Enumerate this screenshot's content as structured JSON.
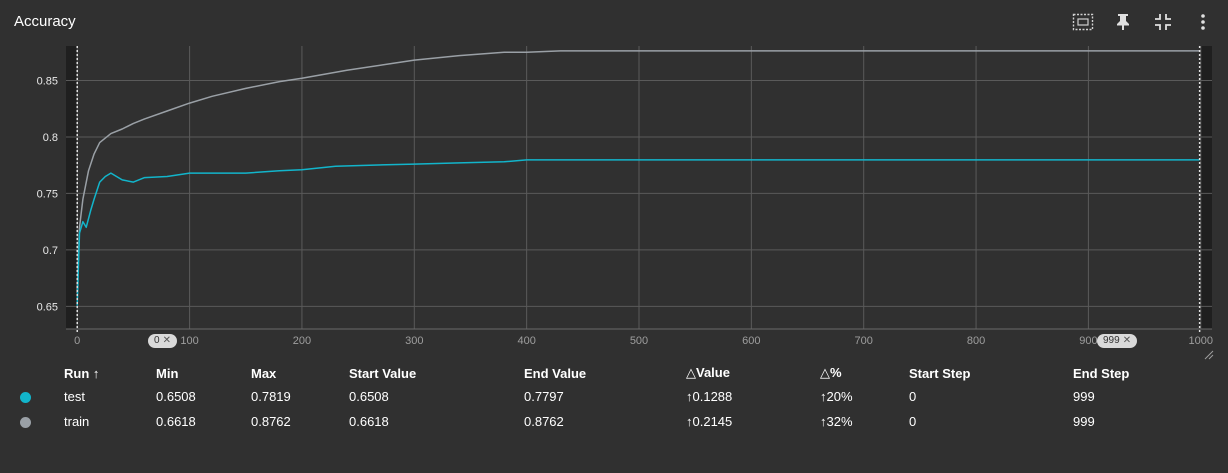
{
  "card": {
    "title": "Accuracy",
    "toolbar": [
      {
        "name": "fit-to-domain-icon",
        "icon": "fit-domain"
      },
      {
        "name": "pin-icon",
        "icon": "pin"
      },
      {
        "name": "collapse-icon",
        "icon": "collapse"
      },
      {
        "name": "more-options-icon",
        "icon": "more"
      }
    ]
  },
  "colors": {
    "background": "#303030",
    "plot_bg": "#303030",
    "outside_bg": "#1f1f1f",
    "grid": "#5a5a5a",
    "test": "#12b5cb",
    "train": "#9aa0a6"
  },
  "range_pills": {
    "start": "0",
    "end": "999"
  },
  "chart_data": {
    "type": "line",
    "title": "Accuracy",
    "xlabel": "",
    "ylabel": "",
    "xlim": [
      -10,
      1010
    ],
    "ylim": [
      0.63,
      0.8805
    ],
    "xticks": [
      0,
      100,
      200,
      300,
      400,
      500,
      600,
      700,
      800,
      900,
      1000
    ],
    "yticks": [
      0.65,
      0.7,
      0.75,
      0.8,
      0.85
    ],
    "ytick_labels": [
      "0.65",
      "0.7",
      "0.75",
      "0.8",
      "0.85"
    ],
    "selected_range": [
      0,
      999
    ],
    "grid": true,
    "series": [
      {
        "name": "train",
        "color": "#9aa0a6",
        "x": [
          0,
          2,
          5,
          10,
          15,
          20,
          30,
          40,
          50,
          60,
          80,
          100,
          120,
          150,
          180,
          200,
          240,
          280,
          300,
          340,
          380,
          400,
          430,
          999
        ],
        "y": [
          0.6618,
          0.72,
          0.745,
          0.77,
          0.785,
          0.795,
          0.803,
          0.807,
          0.812,
          0.816,
          0.823,
          0.83,
          0.836,
          0.843,
          0.849,
          0.852,
          0.859,
          0.865,
          0.868,
          0.872,
          0.875,
          0.875,
          0.8762,
          0.8762
        ]
      },
      {
        "name": "test",
        "color": "#12b5cb",
        "x": [
          0,
          2,
          5,
          8,
          12,
          15,
          20,
          25,
          30,
          40,
          50,
          60,
          80,
          100,
          130,
          150,
          180,
          200,
          230,
          260,
          300,
          340,
          380,
          400,
          999
        ],
        "y": [
          0.6508,
          0.715,
          0.725,
          0.72,
          0.735,
          0.745,
          0.76,
          0.765,
          0.768,
          0.762,
          0.76,
          0.764,
          0.765,
          0.768,
          0.768,
          0.768,
          0.77,
          0.771,
          0.774,
          0.775,
          0.776,
          0.777,
          0.778,
          0.7797,
          0.7797
        ]
      }
    ]
  },
  "table": {
    "headers": [
      "Run ↑",
      "Min",
      "Max",
      "Start Value",
      "End Value",
      "△Value",
      "△%",
      "Start Step",
      "End Step"
    ],
    "rows": [
      {
        "color": "#12b5cb",
        "run": "test",
        "min": "0.6508",
        "max": "0.7819",
        "start_value": "0.6508",
        "end_value": "0.7797",
        "delta_value": "↑0.1288",
        "delta_pct": "↑20%",
        "start_step": "0",
        "end_step": "999"
      },
      {
        "color": "#9aa0a6",
        "run": "train",
        "min": "0.6618",
        "max": "0.8762",
        "start_value": "0.6618",
        "end_value": "0.8762",
        "delta_value": "↑0.2145",
        "delta_pct": "↑32%",
        "start_step": "0",
        "end_step": "999"
      }
    ]
  }
}
